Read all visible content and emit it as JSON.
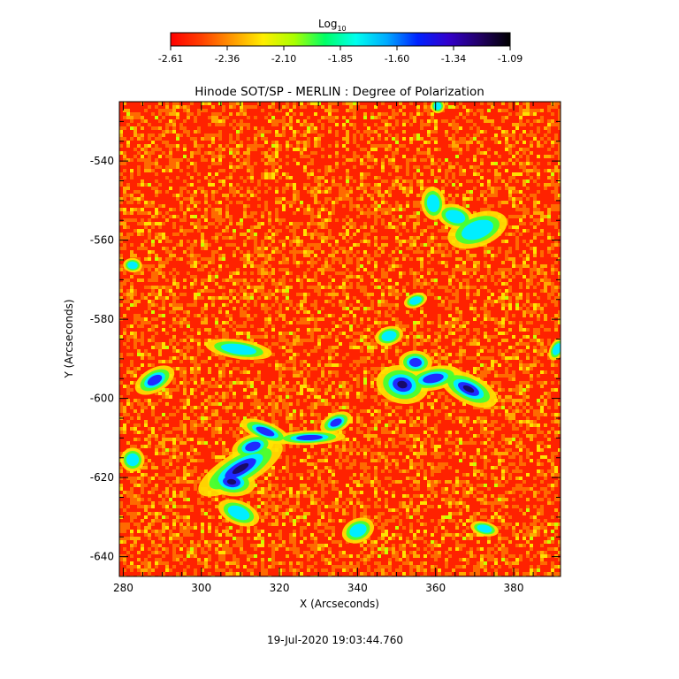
{
  "colorbar": {
    "label_main": "Log",
    "label_sub": "10",
    "ticks": [
      "-2.61",
      "-2.36",
      "-2.10",
      "-1.85",
      "-1.60",
      "-1.34",
      "-1.09"
    ],
    "stops": [
      "#ff0000",
      "#ff4000",
      "#ff9900",
      "#ffee00",
      "#aaff00",
      "#00ff66",
      "#00ffee",
      "#00aaff",
      "#0022ff",
      "#3300cc",
      "#220066",
      "#000000"
    ]
  },
  "plot": {
    "title": "Hinode SOT/SP - MERLIN : Degree of Polarization",
    "xlabel": "X (Arcseconds)",
    "ylabel": "Y (Arcseconds)",
    "x_ticks": [
      "280",
      "300",
      "320",
      "340",
      "360",
      "380"
    ],
    "y_ticks": [
      "-540",
      "-560",
      "-580",
      "-600",
      "-620",
      "-640"
    ],
    "x_range": [
      279,
      392
    ],
    "y_range": [
      -645,
      -525
    ],
    "background_color": "#ff2200"
  },
  "timestamp": "19-Jul-2020 19:03:44.760"
}
